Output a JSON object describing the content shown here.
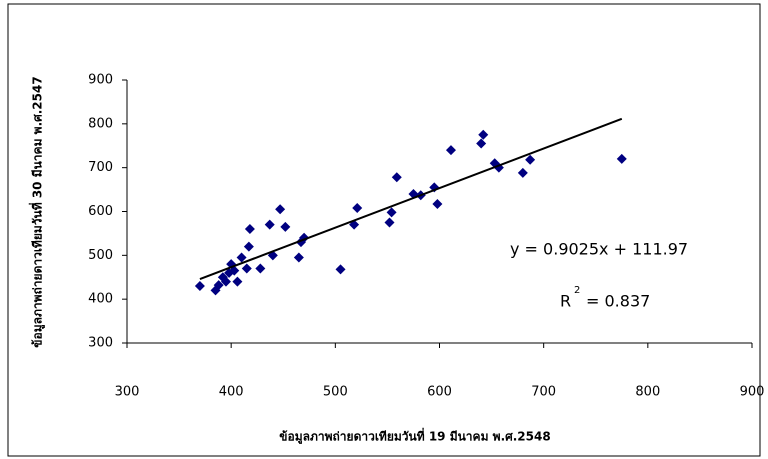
{
  "chart_data": {
    "type": "scatter",
    "x_label": "ข้อมูลภาพถ่ายดาวเทียมวันที่ 19 มีนาคม พ.ศ.2548",
    "y_label": "ข้อมูลภาพถ่ายดาวเทียมวันที่ 30 มีนาคม พ.ศ.2547",
    "color": "#000080",
    "x": [
      370,
      385,
      388,
      392,
      395,
      398,
      400,
      403,
      406,
      410,
      415,
      417,
      418,
      428,
      437,
      440,
      447,
      452,
      465,
      467,
      470,
      505,
      518,
      521,
      552,
      554,
      559,
      575,
      582,
      595,
      598,
      611,
      640,
      642,
      653,
      657,
      680,
      687,
      775
    ],
    "values": [
      430,
      420,
      432,
      450,
      440,
      460,
      480,
      465,
      440,
      495,
      470,
      520,
      560,
      470,
      570,
      500,
      605,
      565,
      495,
      530,
      540,
      468,
      570,
      608,
      575,
      598,
      678,
      640,
      637,
      655,
      617,
      740,
      755,
      775,
      710,
      700,
      688,
      718,
      720
    ],
    "trendline": {
      "x": [
        370,
        775
      ],
      "y": [
        445.9,
        811.4
      ]
    },
    "equation": "y = 0.9025x + 111.97",
    "r_squared": {
      "base": "R",
      "exponent": "2",
      "value": "= 0.837"
    },
    "xlim": [
      300,
      900
    ],
    "xticks": [
      300,
      400,
      500,
      600,
      700,
      800,
      900
    ],
    "ylim": [
      300,
      900
    ],
    "yticks": [
      300,
      400,
      500,
      600,
      700,
      800,
      900
    ]
  }
}
